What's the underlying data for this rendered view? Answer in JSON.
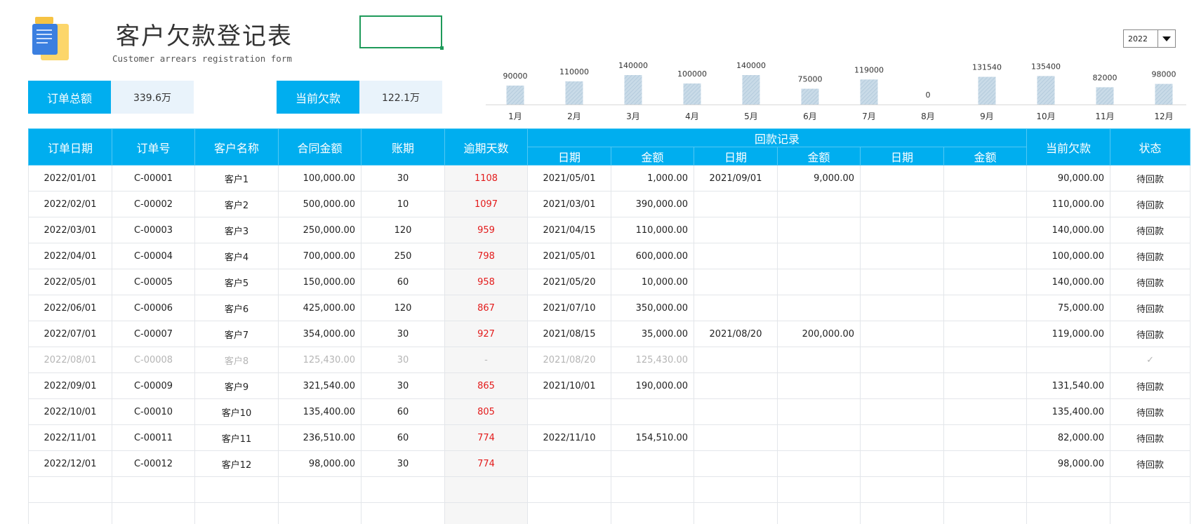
{
  "title": "客户欠款登记表",
  "subtitle": "Customer arrears registration form",
  "kpis": {
    "total_label": "订单总额",
    "total_value": "339.6万",
    "debt_label": "当前欠款",
    "debt_value": "122.1万"
  },
  "year_select": {
    "value": "2022"
  },
  "colors": {
    "accent": "#00aeef",
    "overdue": "#e31b1b",
    "bar": "#c6d9e6"
  },
  "icons": {
    "logo": "document-folder-icon",
    "dropdown": "dropdown-arrow-icon",
    "paid": "check-mark"
  },
  "chart_data": {
    "type": "bar",
    "categories": [
      "1月",
      "2月",
      "3月",
      "4月",
      "5月",
      "6月",
      "7月",
      "8月",
      "9月",
      "10月",
      "11月",
      "12月"
    ],
    "values": [
      90000,
      110000,
      140000,
      100000,
      140000,
      75000,
      119000,
      0,
      131540,
      135400,
      82000,
      98000
    ]
  },
  "table": {
    "headers": [
      "订单日期",
      "订单号",
      "客户名称",
      "合同金额",
      "账期",
      "逾期天数",
      "回款记录",
      "当前欠款",
      "状态"
    ],
    "sub_headers": [
      "日期",
      "金额",
      "日期",
      "金额",
      "日期",
      "金额"
    ],
    "rows": [
      [
        "2022/01/01",
        "C-00001",
        "客户1",
        "100,000.00",
        "30",
        "1108",
        "2021/05/01",
        "1,000.00",
        "2021/09/01",
        "9,000.00",
        "",
        "",
        "90,000.00",
        "待回款"
      ],
      [
        "2022/02/01",
        "C-00002",
        "客户2",
        "500,000.00",
        "10",
        "1097",
        "2021/03/01",
        "390,000.00",
        "",
        "",
        "",
        "",
        "110,000.00",
        "待回款"
      ],
      [
        "2022/03/01",
        "C-00003",
        "客户3",
        "250,000.00",
        "120",
        "959",
        "2021/04/15",
        "110,000.00",
        "",
        "",
        "",
        "",
        "140,000.00",
        "待回款"
      ],
      [
        "2022/04/01",
        "C-00004",
        "客户4",
        "700,000.00",
        "250",
        "798",
        "2021/05/01",
        "600,000.00",
        "",
        "",
        "",
        "",
        "100,000.00",
        "待回款"
      ],
      [
        "2022/05/01",
        "C-00005",
        "客户5",
        "150,000.00",
        "60",
        "958",
        "2021/05/20",
        "10,000.00",
        "",
        "",
        "",
        "",
        "140,000.00",
        "待回款"
      ],
      [
        "2022/06/01",
        "C-00006",
        "客户6",
        "425,000.00",
        "120",
        "867",
        "2021/07/10",
        "350,000.00",
        "",
        "",
        "",
        "",
        "75,000.00",
        "待回款"
      ],
      [
        "2022/07/01",
        "C-00007",
        "客户7",
        "354,000.00",
        "30",
        "927",
        "2021/08/15",
        "35,000.00",
        "2021/08/20",
        "200,000.00",
        "",
        "",
        "119,000.00",
        "待回款"
      ],
      [
        "2022/08/01",
        "C-00008",
        "客户8",
        "125,430.00",
        "30",
        "-",
        "2021/08/20",
        "125,430.00",
        "",
        "",
        "",
        "",
        "",
        "✓"
      ],
      [
        "2022/09/01",
        "C-00009",
        "客户9",
        "321,540.00",
        "30",
        "865",
        "2021/10/01",
        "190,000.00",
        "",
        "",
        "",
        "",
        "131,540.00",
        "待回款"
      ],
      [
        "2022/10/01",
        "C-00010",
        "客户10",
        "135,400.00",
        "60",
        "805",
        "",
        "",
        "",
        "",
        "",
        "",
        "135,400.00",
        "待回款"
      ],
      [
        "2022/11/01",
        "C-00011",
        "客户11",
        "236,510.00",
        "60",
        "774",
        "2022/11/10",
        "154,510.00",
        "",
        "",
        "",
        "",
        "82,000.00",
        "待回款"
      ],
      [
        "2022/12/01",
        "C-00012",
        "客户12",
        "98,000.00",
        "30",
        "774",
        "",
        "",
        "",
        "",
        "",
        "",
        "98,000.00",
        "待回款"
      ],
      [
        "",
        "",
        "",
        "",
        "",
        "",
        "",
        "",
        "",
        "",
        "",
        "",
        "",
        ""
      ],
      [
        "",
        "",
        "",
        "",
        "",
        "",
        "",
        "",
        "",
        "",
        "",
        "",
        "",
        ""
      ]
    ]
  }
}
